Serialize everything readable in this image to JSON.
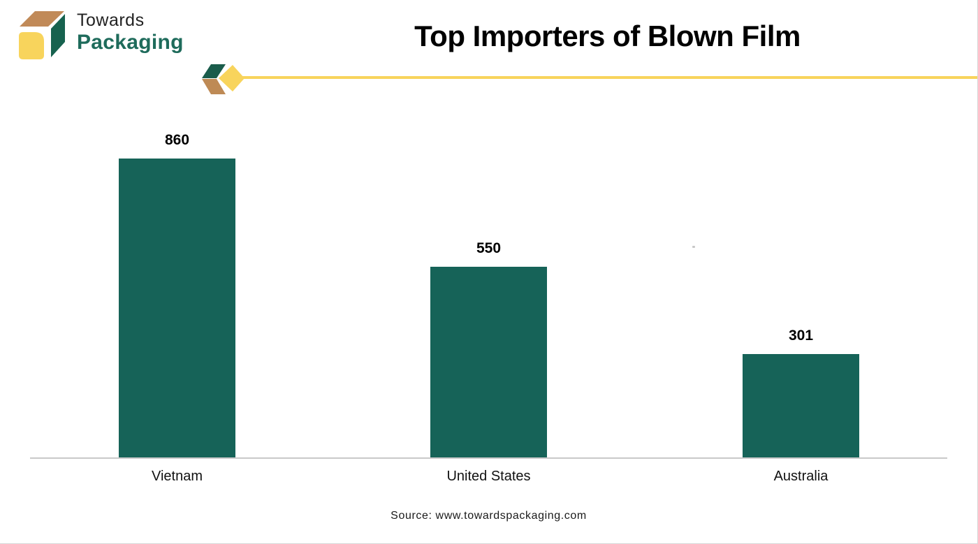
{
  "brand": {
    "word_top": "Towards",
    "word_bottom": "Packaging",
    "text_color_top": "#232323",
    "text_color_bottom": "#1E6B5B"
  },
  "title": "Top Importers of Blown Film",
  "chart_data": {
    "type": "bar",
    "title": "Top Importers of Blown Film",
    "categories": [
      "Vietnam",
      "United States",
      "Australia"
    ],
    "values": [
      860,
      550,
      301
    ],
    "value_labels": [
      "860",
      "550",
      "301"
    ],
    "bar_color": "#166358",
    "xlabel": "",
    "ylabel": "",
    "ylim": [
      0,
      900
    ],
    "grid": false,
    "legend": false,
    "value_label_position": "above-bar"
  },
  "footer": {
    "source_text": "Source: www.towardspackaging.com"
  },
  "colors": {
    "accent_yellow": "#F8D45C",
    "accent_tan": "#C18A58",
    "accent_green_dark": "#17624F",
    "ornament_green": "#1A5C4B",
    "ornament_tan": "#BE8A55",
    "axis_line": "#C9C9C9"
  }
}
